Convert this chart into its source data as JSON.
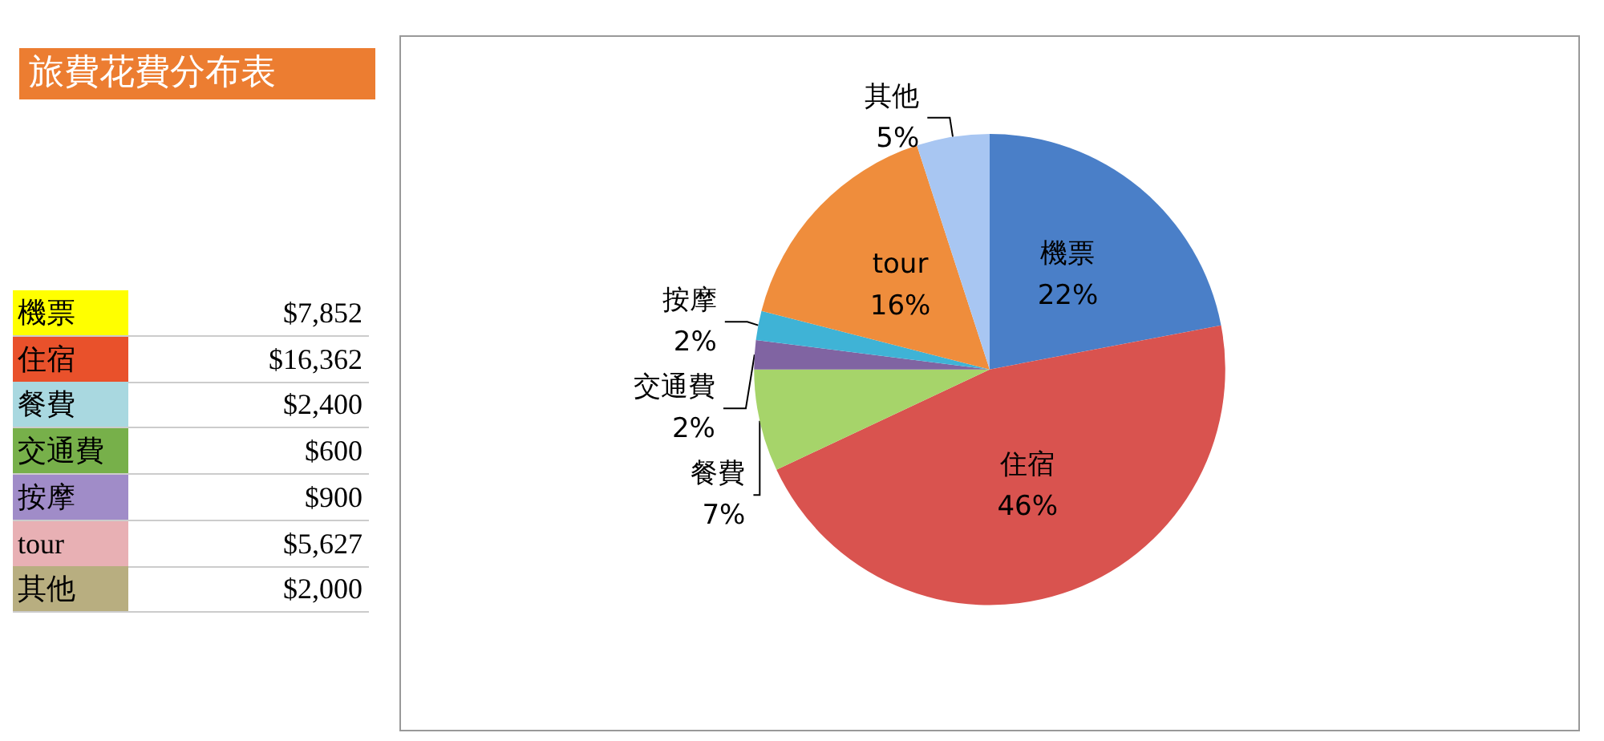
{
  "chart_data": [
    {
      "type": "other",
      "title": "旅費花費分布表",
      "categories": [
        "機票",
        "住宿",
        "餐費",
        "交通費",
        "按摩",
        "tour",
        "其他"
      ],
      "annotations": [
        "$7,852",
        "$16,362",
        "$2,400",
        "$600",
        "$900",
        "$5,627",
        "$2,000"
      ],
      "colors": [
        "#ffff00",
        "#e9512b",
        "#a9d8e0",
        "#77b04a",
        "#a08cc8",
        "#e8b0b4",
        "#b8ae80"
      ]
    },
    {
      "type": "pie",
      "categories": [
        "機票",
        "住宿",
        "餐費",
        "交通費",
        "按摩",
        "tour",
        "其他"
      ],
      "values": [
        22,
        46,
        7,
        2,
        2,
        16,
        5
      ],
      "value_labels": [
        "22%",
        "46%",
        "7%",
        "2%",
        "2%",
        "16%",
        "5%"
      ],
      "colors": [
        "#4a7fc8",
        "#d9534f",
        "#a6d46a",
        "#8064a2",
        "#3fb3d6",
        "#ef8d3c",
        "#a8c6f2"
      ]
    }
  ]
}
